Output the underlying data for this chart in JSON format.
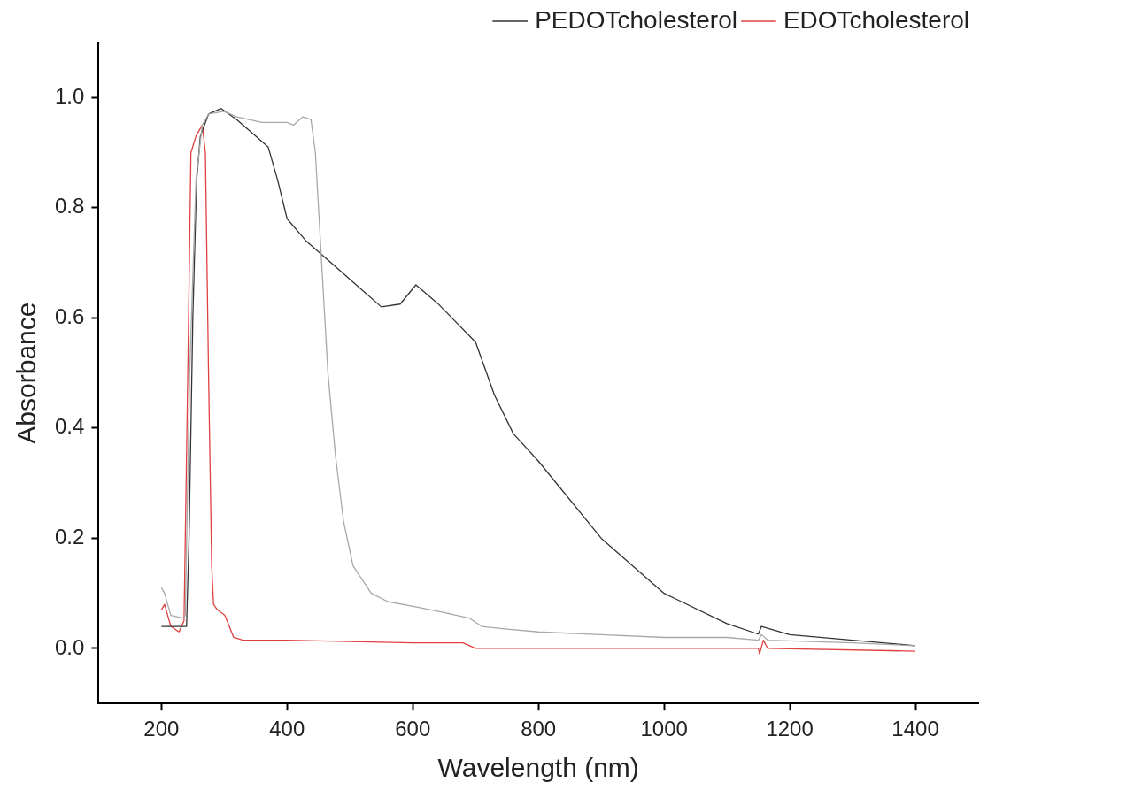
{
  "chart_data": {
    "type": "line",
    "xlabel": "Wavelength (nm)",
    "ylabel": "Absorbance",
    "xlim": [
      100,
      1500
    ],
    "xticks": [
      200,
      400,
      600,
      800,
      1000,
      1200,
      1400
    ],
    "ylim": [
      -0.1,
      1.1
    ],
    "yticks": [
      {
        "value": 0,
        "label": "0.0"
      },
      {
        "value": 0.2,
        "label": "0.2"
      },
      {
        "value": 0.4,
        "label": "0.4"
      },
      {
        "value": 0.6,
        "label": "0.6"
      },
      {
        "value": 0.8,
        "label": "0.8"
      },
      {
        "value": 1,
        "label": "1.0"
      }
    ],
    "legend": "top right",
    "series": [
      {
        "color": "#a8a8a8",
        "x": [
          200,
          205,
          215,
          235,
          238,
          245,
          255,
          265,
          275,
          300,
          320,
          360,
          400,
          410,
          425,
          438,
          445,
          455,
          465,
          477,
          490,
          505,
          534,
          560,
          606,
          650,
          690,
          710,
          750,
          800,
          900,
          1000,
          1100,
          1150,
          1155,
          1165,
          1300,
          1400
        ],
        "values": [
          0.11,
          0.1,
          0.06,
          0.055,
          0.06,
          0.5,
          0.85,
          0.95,
          0.97,
          0.975,
          0.965,
          0.955,
          0.955,
          0.95,
          0.965,
          0.96,
          0.9,
          0.7,
          0.5,
          0.35,
          0.23,
          0.15,
          0.1,
          0.085,
          0.075,
          0.065,
          0.055,
          0.04,
          0.035,
          0.03,
          0.025,
          0.02,
          0.02,
          0.015,
          0.025,
          0.015,
          0.01,
          0.005
        ]
      },
      {
        "name": "PEDOTcholesterol",
        "color": "#333333",
        "x": [
          200,
          220,
          240,
          244,
          250,
          256,
          262,
          275,
          295,
          320,
          350,
          370,
          385,
          400,
          430,
          470,
          510,
          550,
          580,
          605,
          640,
          700,
          730,
          760,
          800,
          900,
          1000,
          1100,
          1150,
          1155,
          1200,
          1300,
          1400
        ],
        "values": [
          0.04,
          0.04,
          0.04,
          0.2,
          0.6,
          0.85,
          0.93,
          0.97,
          0.98,
          0.96,
          0.93,
          0.91,
          0.85,
          0.78,
          0.74,
          0.7,
          0.66,
          0.62,
          0.625,
          0.66,
          0.626,
          0.556,
          0.46,
          0.39,
          0.34,
          0.2,
          0.1,
          0.045,
          0.026,
          0.04,
          0.025,
          0.015,
          0.005
        ]
      },
      {
        "name": "EDOTcholesterol",
        "color": "#e04040",
        "x": [
          200,
          205,
          215,
          228,
          236,
          242,
          247,
          255,
          265,
          270,
          275,
          280,
          283,
          289,
          301,
          315,
          330,
          400,
          600,
          680,
          700,
          1000,
          1150,
          1152,
          1158,
          1165,
          1400
        ],
        "values": [
          0.07,
          0.08,
          0.04,
          0.03,
          0.05,
          0.5,
          0.9,
          0.93,
          0.95,
          0.9,
          0.5,
          0.15,
          0.08,
          0.07,
          0.06,
          0.02,
          0.015,
          0.015,
          0.01,
          0.01,
          0,
          0,
          0,
          -0.01,
          0.015,
          0,
          -0.005
        ]
      }
    ]
  }
}
